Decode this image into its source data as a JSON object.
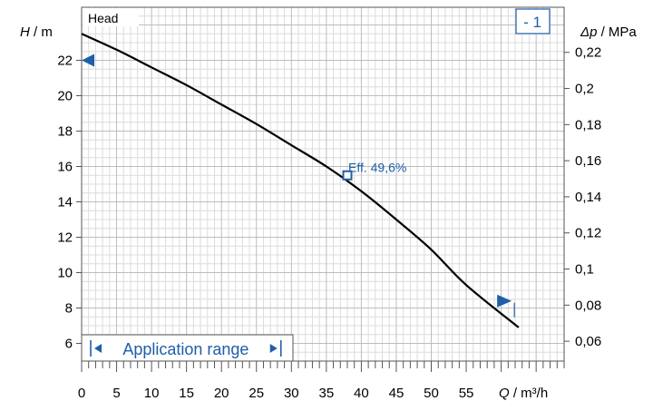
{
  "chart_data": {
    "type": "line",
    "title": "Head",
    "badge": "- 1",
    "left_axis": {
      "symbol": "H",
      "unit": " / m",
      "range": [
        5,
        25
      ],
      "ticks": [
        6,
        8,
        10,
        12,
        14,
        16,
        18,
        20,
        22
      ],
      "tick_labels": [
        "6",
        "8",
        "10",
        "12",
        "14",
        "16",
        "18",
        "20",
        "22"
      ]
    },
    "right_axis": {
      "symbol": "Δp",
      "unit": " / MPa",
      "values": [
        0.06,
        0.08,
        0.1,
        0.12,
        0.14,
        0.16,
        0.18,
        0.2,
        0.22
      ],
      "tick_labels": [
        "0,06",
        "0,08",
        "0,1",
        "0,12",
        "0,14",
        "0,16",
        "0,18",
        "0,2",
        "0,22"
      ]
    },
    "x_axis": {
      "symbol": "Q",
      "unit": " / m³/h",
      "range": [
        0,
        69
      ],
      "ticks": [
        0,
        5,
        10,
        15,
        20,
        25,
        30,
        35,
        40,
        45,
        50,
        55
      ],
      "tick_labels": [
        "0",
        "5",
        "10",
        "15",
        "20",
        "25",
        "30",
        "35",
        "40",
        "45",
        "50",
        "55"
      ]
    },
    "grid": true,
    "series": [
      {
        "points": [
          {
            "x": 0,
            "y": 23.5
          },
          {
            "x": 5,
            "y": 22.6
          },
          {
            "x": 10,
            "y": 21.6
          },
          {
            "x": 15,
            "y": 20.6
          },
          {
            "x": 20,
            "y": 19.5
          },
          {
            "x": 25,
            "y": 18.4
          },
          {
            "x": 30,
            "y": 17.2
          },
          {
            "x": 35,
            "y": 16.0
          },
          {
            "x": 40,
            "y": 14.6
          },
          {
            "x": 45,
            "y": 13.0
          },
          {
            "x": 50,
            "y": 11.3
          },
          {
            "x": 55,
            "y": 9.3
          },
          {
            "x": 62.5,
            "y": 6.9
          }
        ]
      }
    ],
    "efficiency_point": {
      "x": 38,
      "y": 15.5,
      "label": "Eff.  49,6%"
    },
    "range_markers": {
      "min_q": 0,
      "min_h": 22,
      "max_q": 61.5,
      "max_h": 8.4
    },
    "application_range": {
      "label": "Application range",
      "from_q": 1.3,
      "to_q": 28.5
    },
    "colors": {
      "curve": "#000000",
      "accent": "#1f5fa8",
      "grid_minor": "#dcdcdc",
      "grid_major": "#bdbdbd",
      "axis": "#555555"
    }
  }
}
